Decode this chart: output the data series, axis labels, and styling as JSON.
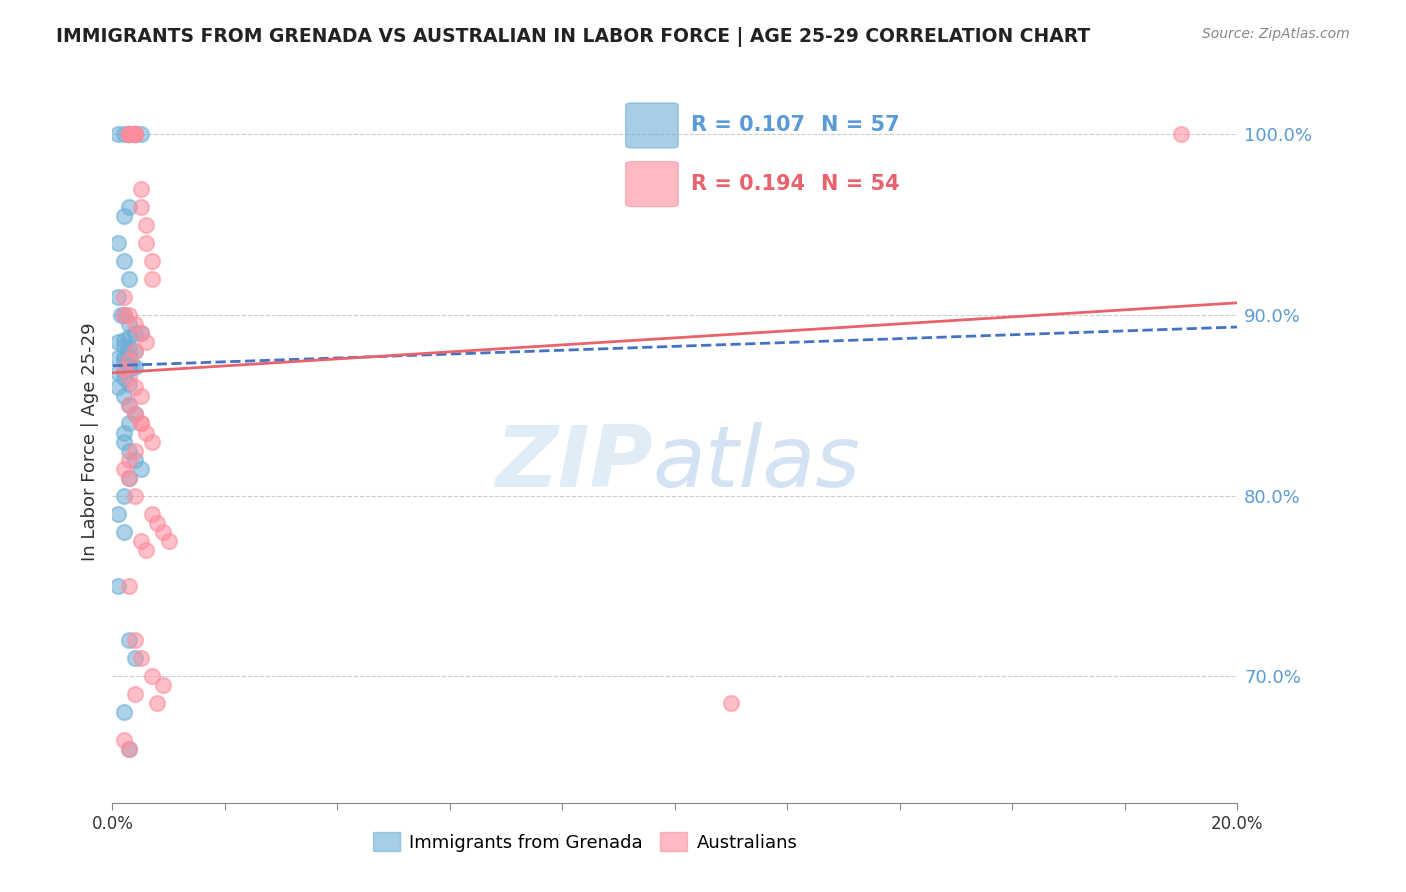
{
  "title": "IMMIGRANTS FROM GRENADA VS AUSTRALIAN IN LABOR FORCE | AGE 25-29 CORRELATION CHART",
  "source": "Source: ZipAtlas.com",
  "ylabel": "In Labor Force | Age 25-29",
  "xlim": [
    0.0,
    0.2
  ],
  "ylim": [
    0.63,
    1.03
  ],
  "xticks": [
    0.0,
    0.02,
    0.04,
    0.06,
    0.08,
    0.1,
    0.12,
    0.14,
    0.16,
    0.18,
    0.2
  ],
  "yticks_right": [
    0.7,
    0.8,
    0.9,
    1.0
  ],
  "ytick_labels_right": [
    "70.0%",
    "80.0%",
    "90.0%",
    "100.0%"
  ],
  "blue_color": "#6baed6",
  "pink_color": "#fc8d9c",
  "blue_line_color": "#4472c4",
  "pink_line_color": "#e8636d",
  "title_color": "#222222",
  "right_label_color": "#5b9bd5",
  "legend_r_color_blue": "#5b9bd5",
  "legend_r_color_pink": "#e8636d",
  "legend_n_color_blue": "#5b9bd5",
  "legend_n_color_pink": "#e8636d",
  "blue_x": [
    0.002,
    0.001,
    0.003,
    0.003,
    0.004,
    0.004,
    0.004,
    0.005,
    0.003,
    0.002,
    0.001,
    0.002,
    0.003,
    0.001,
    0.0015,
    0.002,
    0.003,
    0.004,
    0.005,
    0.003,
    0.002,
    0.001,
    0.002,
    0.003,
    0.004,
    0.003,
    0.002,
    0.001,
    0.002,
    0.0025,
    0.003,
    0.0035,
    0.004,
    0.003,
    0.002,
    0.001,
    0.002,
    0.003,
    0.001,
    0.002,
    0.003,
    0.004,
    0.003,
    0.002,
    0.002,
    0.003,
    0.004,
    0.005,
    0.003,
    0.002,
    0.001,
    0.002,
    0.001,
    0.003,
    0.004,
    0.002,
    0.003
  ],
  "blue_y": [
    1.0,
    1.0,
    1.0,
    1.0,
    1.0,
    1.0,
    1.0,
    1.0,
    0.96,
    0.955,
    0.94,
    0.93,
    0.92,
    0.91,
    0.9,
    0.9,
    0.895,
    0.89,
    0.89,
    0.888,
    0.886,
    0.885,
    0.883,
    0.882,
    0.88,
    0.878,
    0.877,
    0.876,
    0.875,
    0.874,
    0.873,
    0.872,
    0.871,
    0.87,
    0.869,
    0.868,
    0.865,
    0.862,
    0.86,
    0.855,
    0.85,
    0.845,
    0.84,
    0.835,
    0.83,
    0.825,
    0.82,
    0.815,
    0.81,
    0.8,
    0.79,
    0.78,
    0.75,
    0.72,
    0.71,
    0.68,
    0.66
  ],
  "pink_x": [
    0.003,
    0.003,
    0.003,
    0.003,
    0.004,
    0.004,
    0.004,
    0.004,
    0.005,
    0.005,
    0.006,
    0.006,
    0.007,
    0.007,
    0.002,
    0.002,
    0.003,
    0.004,
    0.005,
    0.006,
    0.004,
    0.003,
    0.002,
    0.003,
    0.004,
    0.005,
    0.003,
    0.004,
    0.005,
    0.006,
    0.007,
    0.004,
    0.003,
    0.002,
    0.003,
    0.004,
    0.007,
    0.008,
    0.009,
    0.01,
    0.005,
    0.006,
    0.003,
    0.004,
    0.005,
    0.007,
    0.009,
    0.004,
    0.008,
    0.11,
    0.002,
    0.003,
    0.005,
    0.19
  ],
  "pink_y": [
    1.0,
    1.0,
    1.0,
    1.0,
    1.0,
    1.0,
    1.0,
    1.0,
    0.97,
    0.96,
    0.95,
    0.94,
    0.93,
    0.92,
    0.91,
    0.9,
    0.9,
    0.895,
    0.89,
    0.885,
    0.88,
    0.875,
    0.87,
    0.865,
    0.86,
    0.855,
    0.85,
    0.845,
    0.84,
    0.835,
    0.83,
    0.825,
    0.82,
    0.815,
    0.81,
    0.8,
    0.79,
    0.785,
    0.78,
    0.775,
    0.775,
    0.77,
    0.75,
    0.72,
    0.71,
    0.7,
    0.695,
    0.69,
    0.685,
    0.685,
    0.665,
    0.66,
    0.84,
    1.0
  ],
  "blue_slope": 0.107,
  "blue_intercept": 0.872,
  "pink_slope": 0.194,
  "pink_intercept": 0.868,
  "legend_blue_r": "R = 0.107",
  "legend_blue_n": "N = 57",
  "legend_pink_r": "R = 0.194",
  "legend_pink_n": "N = 54"
}
